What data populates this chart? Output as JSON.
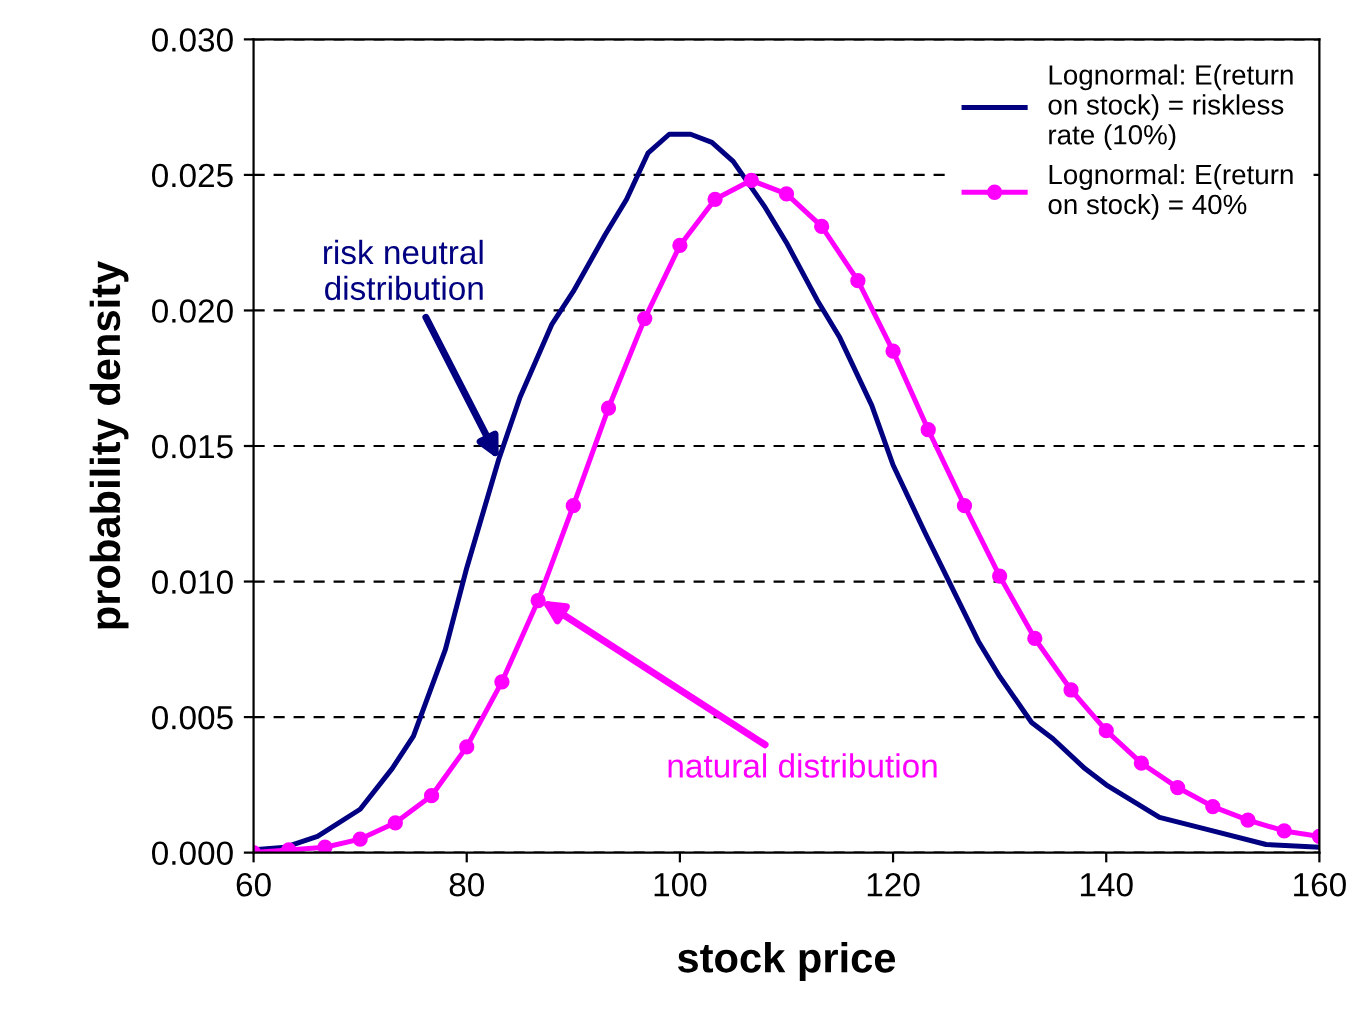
{
  "chart_data": {
    "type": "line",
    "xlabel": "stock price",
    "ylabel": "probability density",
    "xlim": [
      60,
      160
    ],
    "xticks": [
      60,
      80,
      100,
      120,
      140,
      160
    ],
    "ylim": [
      0,
      0.03
    ],
    "yticks": [
      {
        "value": 0,
        "label": "0.000"
      },
      {
        "value": 0.005,
        "label": "0.005"
      },
      {
        "value": 0.01,
        "label": "0.010"
      },
      {
        "value": 0.015,
        "label": "0.015"
      },
      {
        "value": 0.02,
        "label": "0.020"
      },
      {
        "value": 0.025,
        "label": "0.025"
      },
      {
        "value": 0.03,
        "label": "0.030"
      }
    ],
    "grid": "y",
    "legend": "top right",
    "series": [
      {
        "name": "Lognormal: E(return\non stock) = riskless\nrate (10%)",
        "color": "#000080",
        "marker": "none",
        "x": [
          60,
          63,
          66,
          70,
          73,
          75,
          78,
          80,
          83,
          85,
          88,
          90,
          93,
          95,
          97,
          99,
          101,
          103,
          105,
          108,
          110,
          113,
          115,
          118,
          120,
          123,
          125,
          128,
          130,
          133,
          135,
          138,
          140,
          145,
          150,
          155,
          160
        ],
        "values": [
          0.0001,
          0.0002,
          0.0006,
          0.0016,
          0.0031,
          0.0043,
          0.0075,
          0.0105,
          0.0145,
          0.0168,
          0.0195,
          0.0207,
          0.0228,
          0.0241,
          0.0258,
          0.0265,
          0.0265,
          0.0262,
          0.0255,
          0.0238,
          0.0225,
          0.0203,
          0.019,
          0.0165,
          0.0143,
          0.0118,
          0.0102,
          0.0078,
          0.0065,
          0.0048,
          0.0042,
          0.0031,
          0.0025,
          0.0013,
          0.0008,
          0.0003,
          0.0002
        ]
      },
      {
        "name": "Lognormal: E(return\non stock) = 40%",
        "color": "#ff00ff",
        "marker": "circle",
        "x": [
          60,
          63.3,
          66.7,
          70,
          73.3,
          76.7,
          80,
          83.3,
          86.7,
          90,
          93.3,
          96.7,
          100,
          103.3,
          106.7,
          110,
          113.3,
          116.7,
          120,
          123.3,
          126.7,
          130,
          133.3,
          136.7,
          140,
          143.3,
          146.7,
          150,
          153.3,
          156.7,
          160
        ],
        "values": [
          0.0,
          0.0001,
          0.0002,
          0.0005,
          0.0011,
          0.0021,
          0.0039,
          0.0063,
          0.0093,
          0.0128,
          0.0164,
          0.0197,
          0.0224,
          0.0241,
          0.0248,
          0.0243,
          0.0231,
          0.0211,
          0.0185,
          0.0156,
          0.0128,
          0.0102,
          0.0079,
          0.006,
          0.0045,
          0.0033,
          0.0024,
          0.0017,
          0.0012,
          0.0008,
          0.0006
        ]
      }
    ],
    "annotations": [
      {
        "text": "risk neutral\ndistribution",
        "x": 83,
        "y": 0.0145
      },
      {
        "text": "natural distribution",
        "x": 87,
        "y": 0.0093
      }
    ]
  }
}
